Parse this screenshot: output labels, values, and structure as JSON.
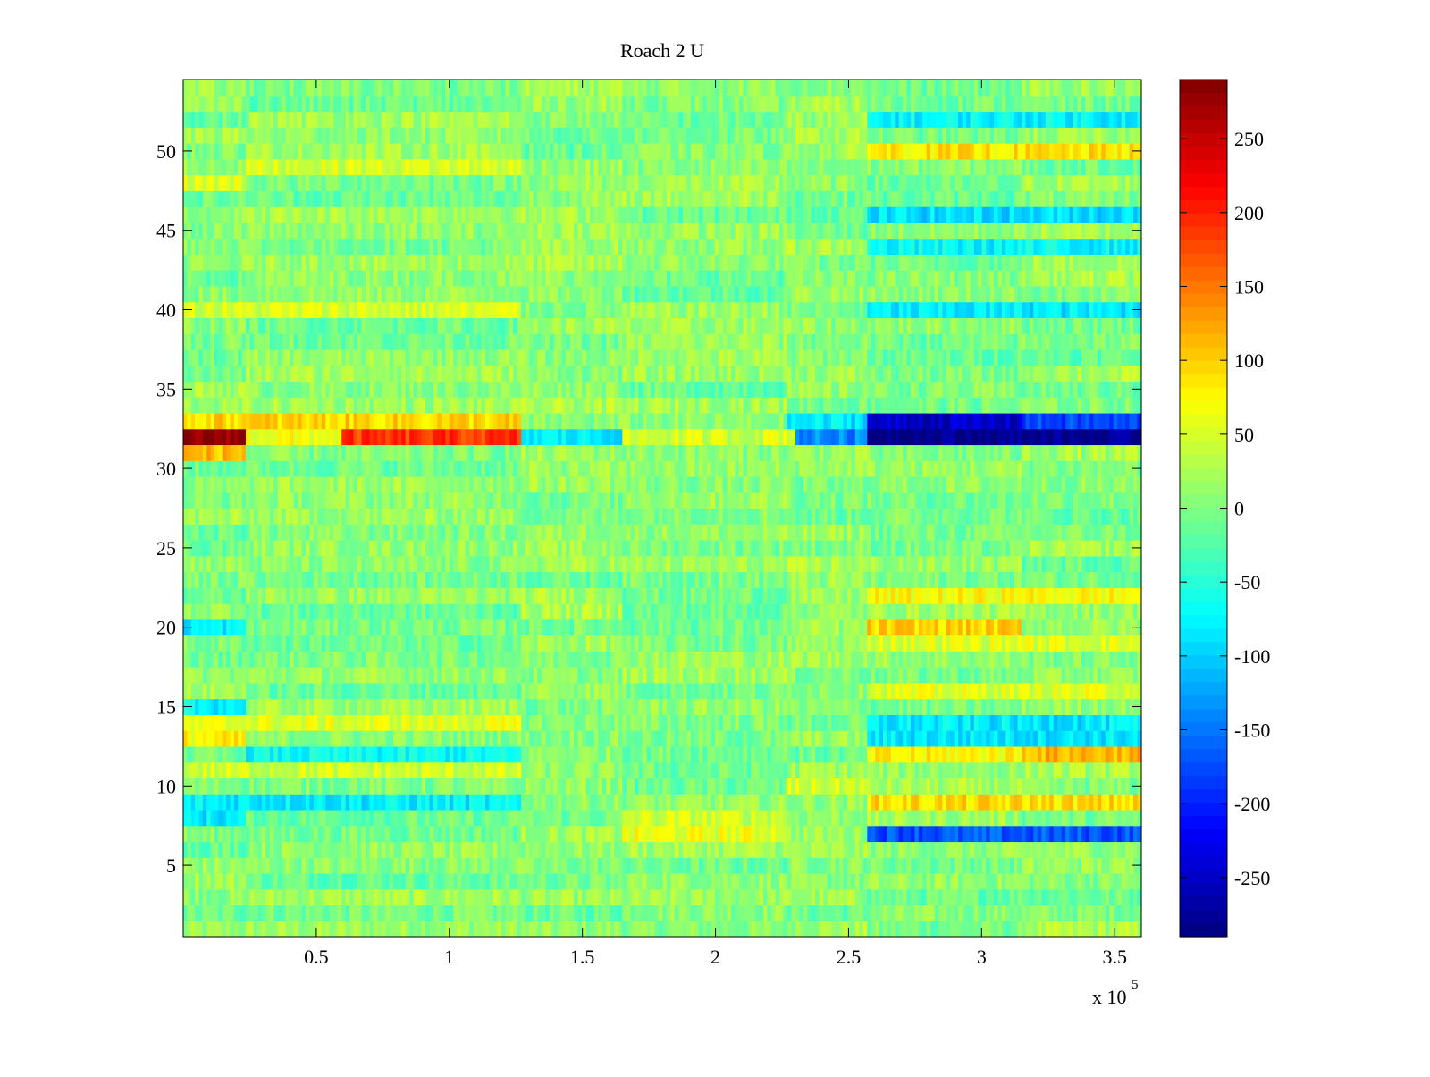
{
  "chart_data": {
    "type": "heatmap",
    "title": "Roach 2 U",
    "xlabel": "",
    "ylabel": "",
    "x_exponent_label": "x 10",
    "x_exponent_power": "5",
    "xlim": [
      0,
      3.6
    ],
    "ylim": [
      0.5,
      54.5
    ],
    "x_ticks": [
      0.5,
      1,
      1.5,
      2,
      2.5,
      3,
      3.5
    ],
    "x_tick_labels": [
      "0.5",
      "1",
      "1.5",
      "2",
      "2.5",
      "3",
      "3.5"
    ],
    "y_ticks": [
      5,
      10,
      15,
      20,
      25,
      30,
      35,
      40,
      45,
      50
    ],
    "y_tick_labels": [
      "5",
      "10",
      "15",
      "20",
      "25",
      "30",
      "35",
      "40",
      "45",
      "50"
    ],
    "rows": 54,
    "colormap": "jet",
    "clim": [
      -290,
      290
    ],
    "colorbar_ticks": [
      250,
      200,
      150,
      100,
      50,
      0,
      -50,
      -100,
      -150,
      -200,
      -250
    ],
    "colorbar_tick_labels": [
      "250",
      "200",
      "150",
      "100",
      "50",
      "0",
      "-50",
      "-100",
      "-150",
      "-200",
      "-250"
    ],
    "segment_x_bounds": [
      0,
      0.235,
      1.27,
      1.65,
      2.27,
      2.57,
      3.15,
      3.6
    ],
    "baseline_value": 5,
    "noise_amplitude": 28,
    "features": [
      {
        "row": 32,
        "x_range": [
          0,
          0.235
        ],
        "value": 280
      },
      {
        "row": 32,
        "x_range": [
          0.235,
          0.6
        ],
        "value": 65
      },
      {
        "row": 32,
        "x_range": [
          0.6,
          1.27
        ],
        "value": 185
      },
      {
        "row": 32,
        "x_range": [
          1.27,
          1.65
        ],
        "value": -80
      },
      {
        "row": 32,
        "x_range": [
          1.65,
          2.2
        ],
        "value": 45
      },
      {
        "row": 32,
        "x_range": [
          2.2,
          2.3
        ],
        "value": 60
      },
      {
        "row": 32,
        "x_range": [
          2.3,
          2.57
        ],
        "value": -140
      },
      {
        "row": 32,
        "x_range": [
          2.57,
          3.6
        ],
        "value": -285
      },
      {
        "row": 33,
        "x_range": [
          0,
          1.27
        ],
        "value": 95
      },
      {
        "row": 33,
        "x_range": [
          2.27,
          2.57
        ],
        "value": -85
      },
      {
        "row": 33,
        "x_range": [
          2.57,
          3.15
        ],
        "value": -250
      },
      {
        "row": 33,
        "x_range": [
          3.15,
          3.6
        ],
        "value": -180
      },
      {
        "row": 31,
        "x_range": [
          0,
          0.235
        ],
        "value": 110
      },
      {
        "row": 40,
        "x_range": [
          0,
          1.27
        ],
        "value": 50
      },
      {
        "row": 40,
        "x_range": [
          2.57,
          3.6
        ],
        "value": -85
      },
      {
        "row": 50,
        "x_range": [
          2.57,
          3.6
        ],
        "value": 85
      },
      {
        "row": 52,
        "x_range": [
          2.57,
          3.6
        ],
        "value": -75
      },
      {
        "row": 49,
        "x_range": [
          0.235,
          1.27
        ],
        "value": 50
      },
      {
        "row": 48,
        "x_range": [
          0,
          0.235
        ],
        "value": 55
      },
      {
        "row": 46,
        "x_range": [
          2.57,
          3.6
        ],
        "value": -90
      },
      {
        "row": 44,
        "x_range": [
          2.57,
          3.6
        ],
        "value": -75
      },
      {
        "row": 22,
        "x_range": [
          2.57,
          3.6
        ],
        "value": 70
      },
      {
        "row": 20,
        "x_range": [
          2.57,
          3.15
        ],
        "value": 95
      },
      {
        "row": 19,
        "x_range": [
          2.57,
          3.6
        ],
        "value": 55
      },
      {
        "row": 16,
        "x_range": [
          2.57,
          3.6
        ],
        "value": 55
      },
      {
        "row": 14,
        "x_range": [
          2.57,
          3.6
        ],
        "value": -85
      },
      {
        "row": 13,
        "x_range": [
          2.57,
          3.6
        ],
        "value": -85
      },
      {
        "row": 14,
        "x_range": [
          0,
          1.27
        ],
        "value": 55
      },
      {
        "row": 13,
        "x_range": [
          0,
          0.235
        ],
        "value": 75
      },
      {
        "row": 12,
        "x_range": [
          0.235,
          1.27
        ],
        "value": -70
      },
      {
        "row": 12,
        "x_range": [
          2.57,
          3.15
        ],
        "value": 75
      },
      {
        "row": 12,
        "x_range": [
          3.15,
          3.6
        ],
        "value": 115
      },
      {
        "row": 15,
        "x_range": [
          0,
          0.235
        ],
        "value": -75
      },
      {
        "row": 20,
        "x_range": [
          0,
          0.235
        ],
        "value": -80
      },
      {
        "row": 9,
        "x_range": [
          0,
          1.27
        ],
        "value": -80
      },
      {
        "row": 8,
        "x_range": [
          0,
          0.235
        ],
        "value": -85
      },
      {
        "row": 9,
        "x_range": [
          2.57,
          3.6
        ],
        "value": 90
      },
      {
        "row": 7,
        "x_range": [
          2.57,
          3.6
        ],
        "value": -170
      },
      {
        "row": 7,
        "x_range": [
          1.65,
          2.27
        ],
        "value": 60
      },
      {
        "row": 8,
        "x_range": [
          1.65,
          2.27
        ],
        "value": 45
      },
      {
        "row": 11,
        "x_range": [
          0,
          1.27
        ],
        "value": 45
      },
      {
        "row": 10,
        "x_range": [
          2.27,
          2.57
        ],
        "value": 45
      }
    ]
  }
}
